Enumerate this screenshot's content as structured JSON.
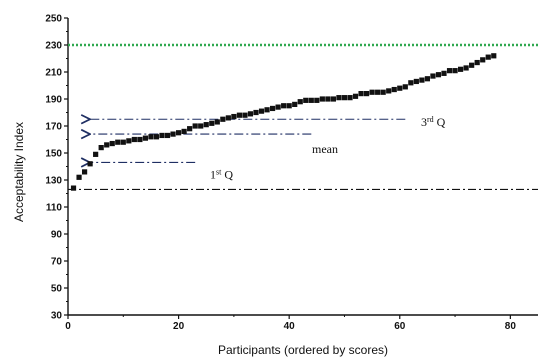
{
  "chart_data": {
    "type": "scatter",
    "xlabel": "Participants  (ordered by scores)",
    "ylabel": "Acceptability Index",
    "xlim": [
      0,
      85
    ],
    "ylim": [
      30,
      250
    ],
    "xticks": [
      0,
      20,
      40,
      60,
      80
    ],
    "yticks": [
      30,
      50,
      70,
      90,
      110,
      130,
      150,
      170,
      190,
      210,
      230,
      250
    ],
    "x": [
      1,
      2,
      3,
      4,
      5,
      6,
      7,
      8,
      9,
      10,
      11,
      12,
      13,
      14,
      15,
      16,
      17,
      18,
      19,
      20,
      21,
      22,
      23,
      24,
      25,
      26,
      27,
      28,
      29,
      30,
      31,
      32,
      33,
      34,
      35,
      36,
      37,
      38,
      39,
      40,
      41,
      42,
      43,
      44,
      45,
      46,
      47,
      48,
      49,
      50,
      51,
      52,
      53,
      54,
      55,
      56,
      57,
      58,
      59,
      60,
      61,
      62,
      63,
      64,
      65,
      66,
      67,
      68,
      69,
      70,
      71,
      72,
      73,
      74,
      75,
      76,
      77
    ],
    "y": [
      124,
      132,
      136,
      142,
      149,
      154,
      156,
      157,
      158,
      158,
      159,
      160,
      160,
      161,
      162,
      162,
      163,
      163,
      164,
      165,
      166,
      168,
      170,
      170,
      171,
      172,
      173,
      175,
      176,
      177,
      178,
      178,
      179,
      180,
      181,
      182,
      183,
      184,
      185,
      185,
      186,
      188,
      189,
      189,
      189,
      190,
      190,
      190,
      191,
      191,
      191,
      192,
      194,
      194,
      195,
      195,
      195,
      196,
      197,
      198,
      199,
      202,
      203,
      204,
      205,
      207,
      208,
      209,
      211,
      211,
      212,
      213,
      215,
      217,
      219,
      221,
      222
    ],
    "reference_lines": [
      {
        "value": 230,
        "style": "dotted",
        "color": "#2fa84f"
      },
      {
        "value": 123,
        "style": "dash-dot",
        "color": "#111111"
      }
    ],
    "quartile_markers": [
      {
        "label": "1st Q",
        "value": 143,
        "x_end": 23
      },
      {
        "label": "mean",
        "value": 164,
        "x_end": 44
      },
      {
        "label": "3rd Q",
        "value": 175,
        "x_end": 61
      }
    ]
  }
}
